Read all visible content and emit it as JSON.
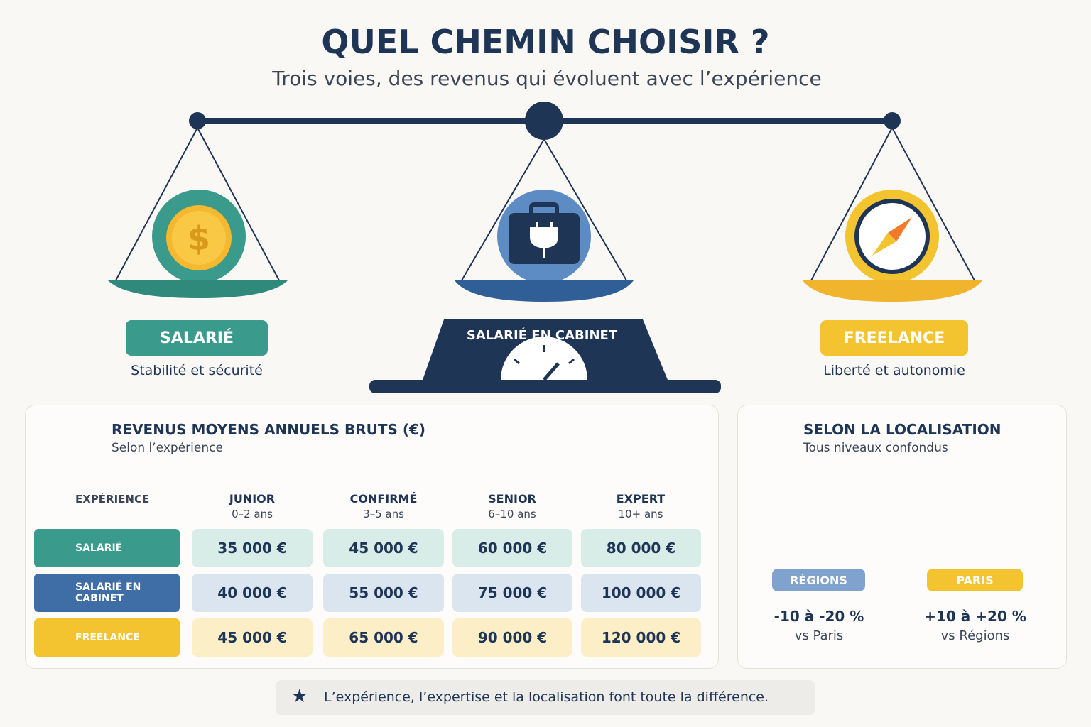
{
  "header": {
    "title": "QUEL CHEMIN CHOISIR ?",
    "subtitle": "Trois voies, des revenus qui évoluent avec l’expérience"
  },
  "paths": [
    {
      "label": "SALARIÉ",
      "tagline": "Stabilité et sécurité"
    },
    {
      "label": "SALARIÉ EN CABINET"
    },
    {
      "label": "FREELANCE",
      "tagline": "Liberté et autonomie"
    }
  ],
  "table": {
    "title": "REVENUS MOYENS ANNUELS BRUTS (€)",
    "subtitle": "Selon l’expérience",
    "header_label": "EXPÉRIENCE",
    "columns": [
      {
        "name": "JUNIOR",
        "range": "0–2 ans"
      },
      {
        "name": "CONFIRMÉ",
        "range": "3–5 ans"
      },
      {
        "name": "SENIOR",
        "range": "6–10 ans"
      },
      {
        "name": "EXPERT",
        "range": "10+ ans"
      }
    ],
    "rows": [
      {
        "label": "SALARIÉ",
        "cells": [
          "35 000 €",
          "45 000 €",
          "60 000 €",
          "80 000 €"
        ]
      },
      {
        "label": "SALARIÉ EN CABINET",
        "cells": [
          "40 000 €",
          "55 000 €",
          "75 000 €",
          "100 000 €"
        ]
      },
      {
        "label": "FREELANCE",
        "cells": [
          "45 000 €",
          "65 000 €",
          "90 000 €",
          "120 000 €"
        ]
      }
    ]
  },
  "location": {
    "title": "SELON LA LOCALISATION",
    "subtitle": "Tous niveaux confondus",
    "items": [
      {
        "label": "RÉGIONS",
        "change": "-10 à -20 %",
        "reference": "vs Paris"
      },
      {
        "label": "PARIS",
        "change": "+10 à +20 %",
        "reference": "vs Régions"
      }
    ]
  },
  "footer": {
    "text": "L’expérience, l’expertise et la localisation font toute la différence."
  }
}
